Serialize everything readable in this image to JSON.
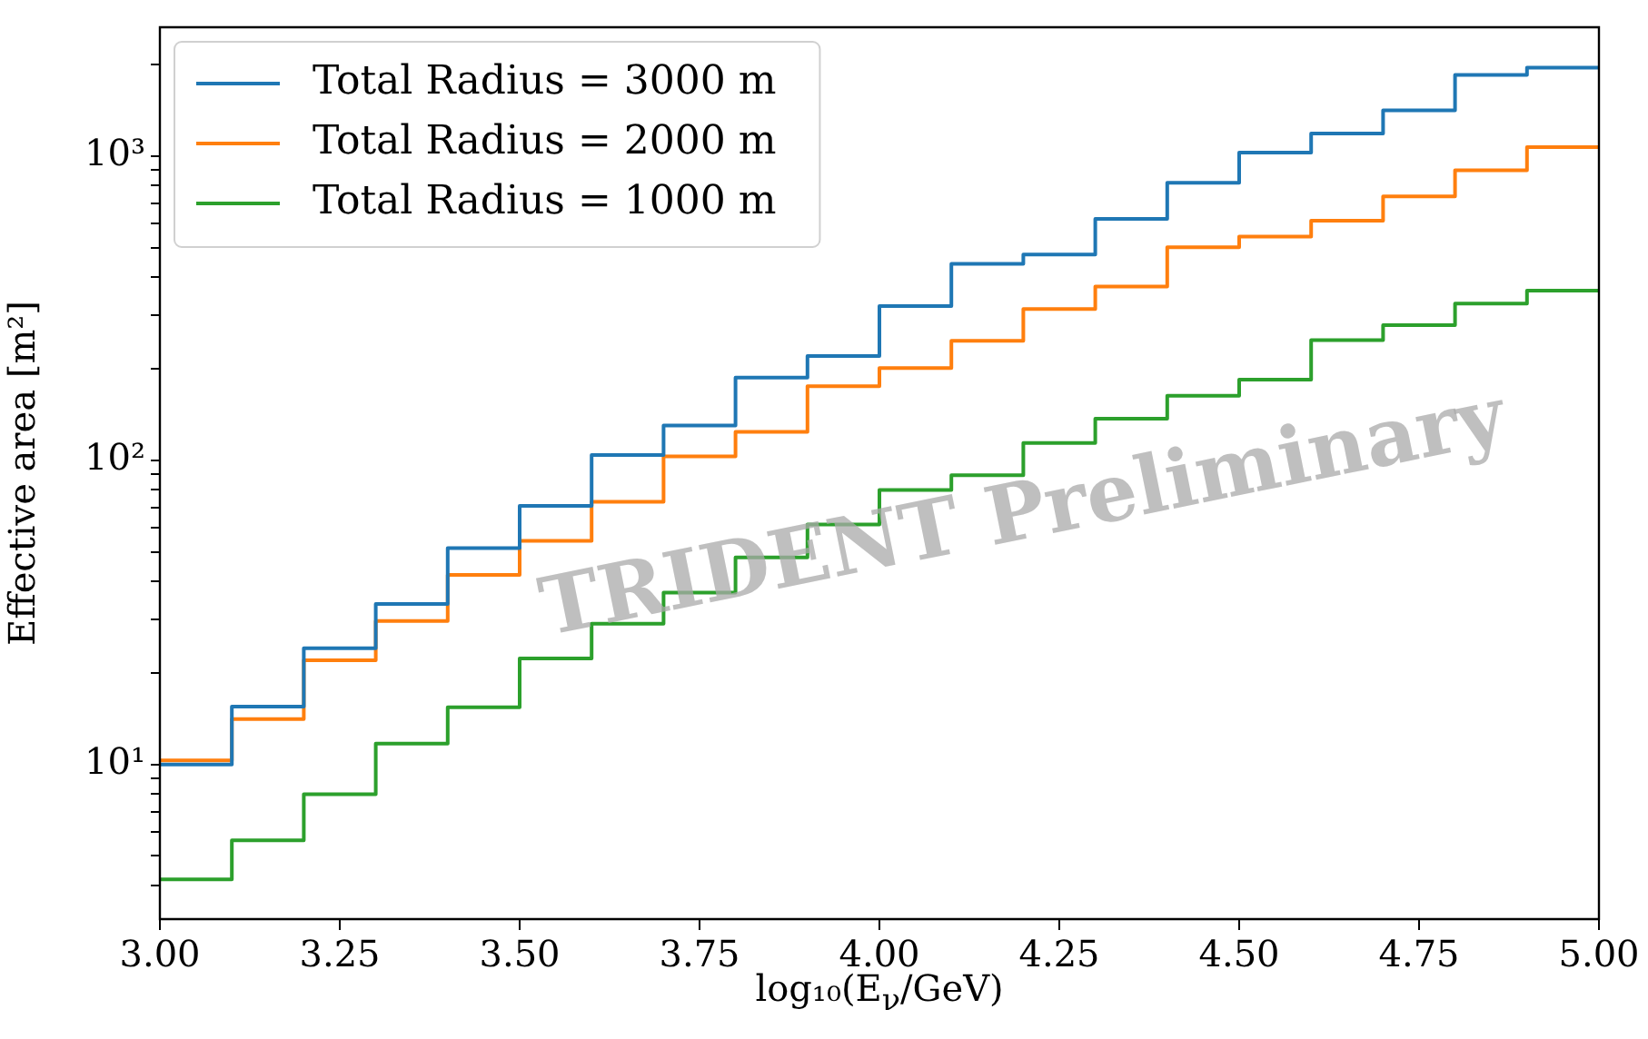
{
  "chart_data": {
    "type": "step",
    "xlabel": "log₁₀(E$_{ν}$/GeV)",
    "ylabel": "Effective area [m²]",
    "annotations": [
      "TRIDENT Preliminary"
    ],
    "x": [
      3.0,
      3.1,
      3.2,
      3.3,
      3.4,
      3.5,
      3.6,
      3.7,
      3.8,
      3.9,
      4.0,
      4.1,
      4.2,
      4.3,
      4.4,
      4.5,
      4.6,
      4.7,
      4.8,
      4.9,
      5.0
    ],
    "series": [
      {
        "name": "Total Radius = 3000 m",
        "color": "#1f77b4",
        "values": [
          10.0,
          15.5,
          24.1,
          33.7,
          51.4,
          70.8,
          104,
          130,
          187,
          220,
          321,
          442,
          474,
          621,
          817,
          1027,
          1185,
          1412,
          1848,
          1950,
          1950
        ]
      },
      {
        "name": "Total Radius = 2000 m",
        "color": "#ff7f0e",
        "values": [
          10.3,
          14.1,
          22.0,
          29.6,
          42.0,
          54.3,
          73.0,
          103,
          124,
          175,
          201,
          247,
          314,
          372,
          501,
          543,
          613,
          736,
          897,
          1070,
          1070
        ]
      },
      {
        "name": "Total Radius = 1000 m",
        "color": "#2ca02c",
        "values": [
          4.19,
          5.63,
          7.98,
          11.7,
          15.4,
          22.3,
          29.0,
          36.7,
          47.9,
          61.5,
          79.8,
          89.3,
          114,
          137,
          163,
          184,
          248,
          278,
          327,
          361,
          361
        ]
      }
    ],
    "xlim": [
      3.0,
      5.0
    ],
    "xticks": [
      {
        "value": 3,
        "label": "3.00"
      },
      {
        "value": 3.25,
        "label": "3.25"
      },
      {
        "value": 3.5,
        "label": "3.50"
      },
      {
        "value": 3.75,
        "label": "3.75"
      },
      {
        "value": 4,
        "label": "4.00"
      },
      {
        "value": 4.25,
        "label": "4.25"
      },
      {
        "value": 4.5,
        "label": "4.50"
      },
      {
        "value": 4.75,
        "label": "4.75"
      },
      {
        "value": 5,
        "label": "5.00"
      }
    ],
    "ylim": [
      3.1,
      2650
    ],
    "log": true,
    "yticks": [
      {
        "value": 4,
        "label": null
      },
      {
        "value": 5,
        "label": null
      },
      {
        "value": 6,
        "label": null
      },
      {
        "value": 7,
        "label": null
      },
      {
        "value": 8,
        "label": null
      },
      {
        "value": 9,
        "label": null
      },
      {
        "value": 10,
        "label": "10¹"
      },
      {
        "value": 20,
        "label": null
      },
      {
        "value": 30,
        "label": null
      },
      {
        "value": 40,
        "label": null
      },
      {
        "value": 50,
        "label": null
      },
      {
        "value": 60,
        "label": null
      },
      {
        "value": 70,
        "label": null
      },
      {
        "value": 80,
        "label": null
      },
      {
        "value": 90,
        "label": null
      },
      {
        "value": 100,
        "label": "10²"
      },
      {
        "value": 200,
        "label": null
      },
      {
        "value": 300,
        "label": null
      },
      {
        "value": 400,
        "label": null
      },
      {
        "value": 500,
        "label": null
      },
      {
        "value": 600,
        "label": null
      },
      {
        "value": 700,
        "label": null
      },
      {
        "value": 800,
        "label": null
      },
      {
        "value": 900,
        "label": null
      },
      {
        "value": 1000,
        "label": "10³"
      },
      {
        "value": 2000,
        "label": null
      }
    ],
    "grid": false,
    "legend": "top left",
    "marker": "none",
    "line_style": "solid"
  }
}
